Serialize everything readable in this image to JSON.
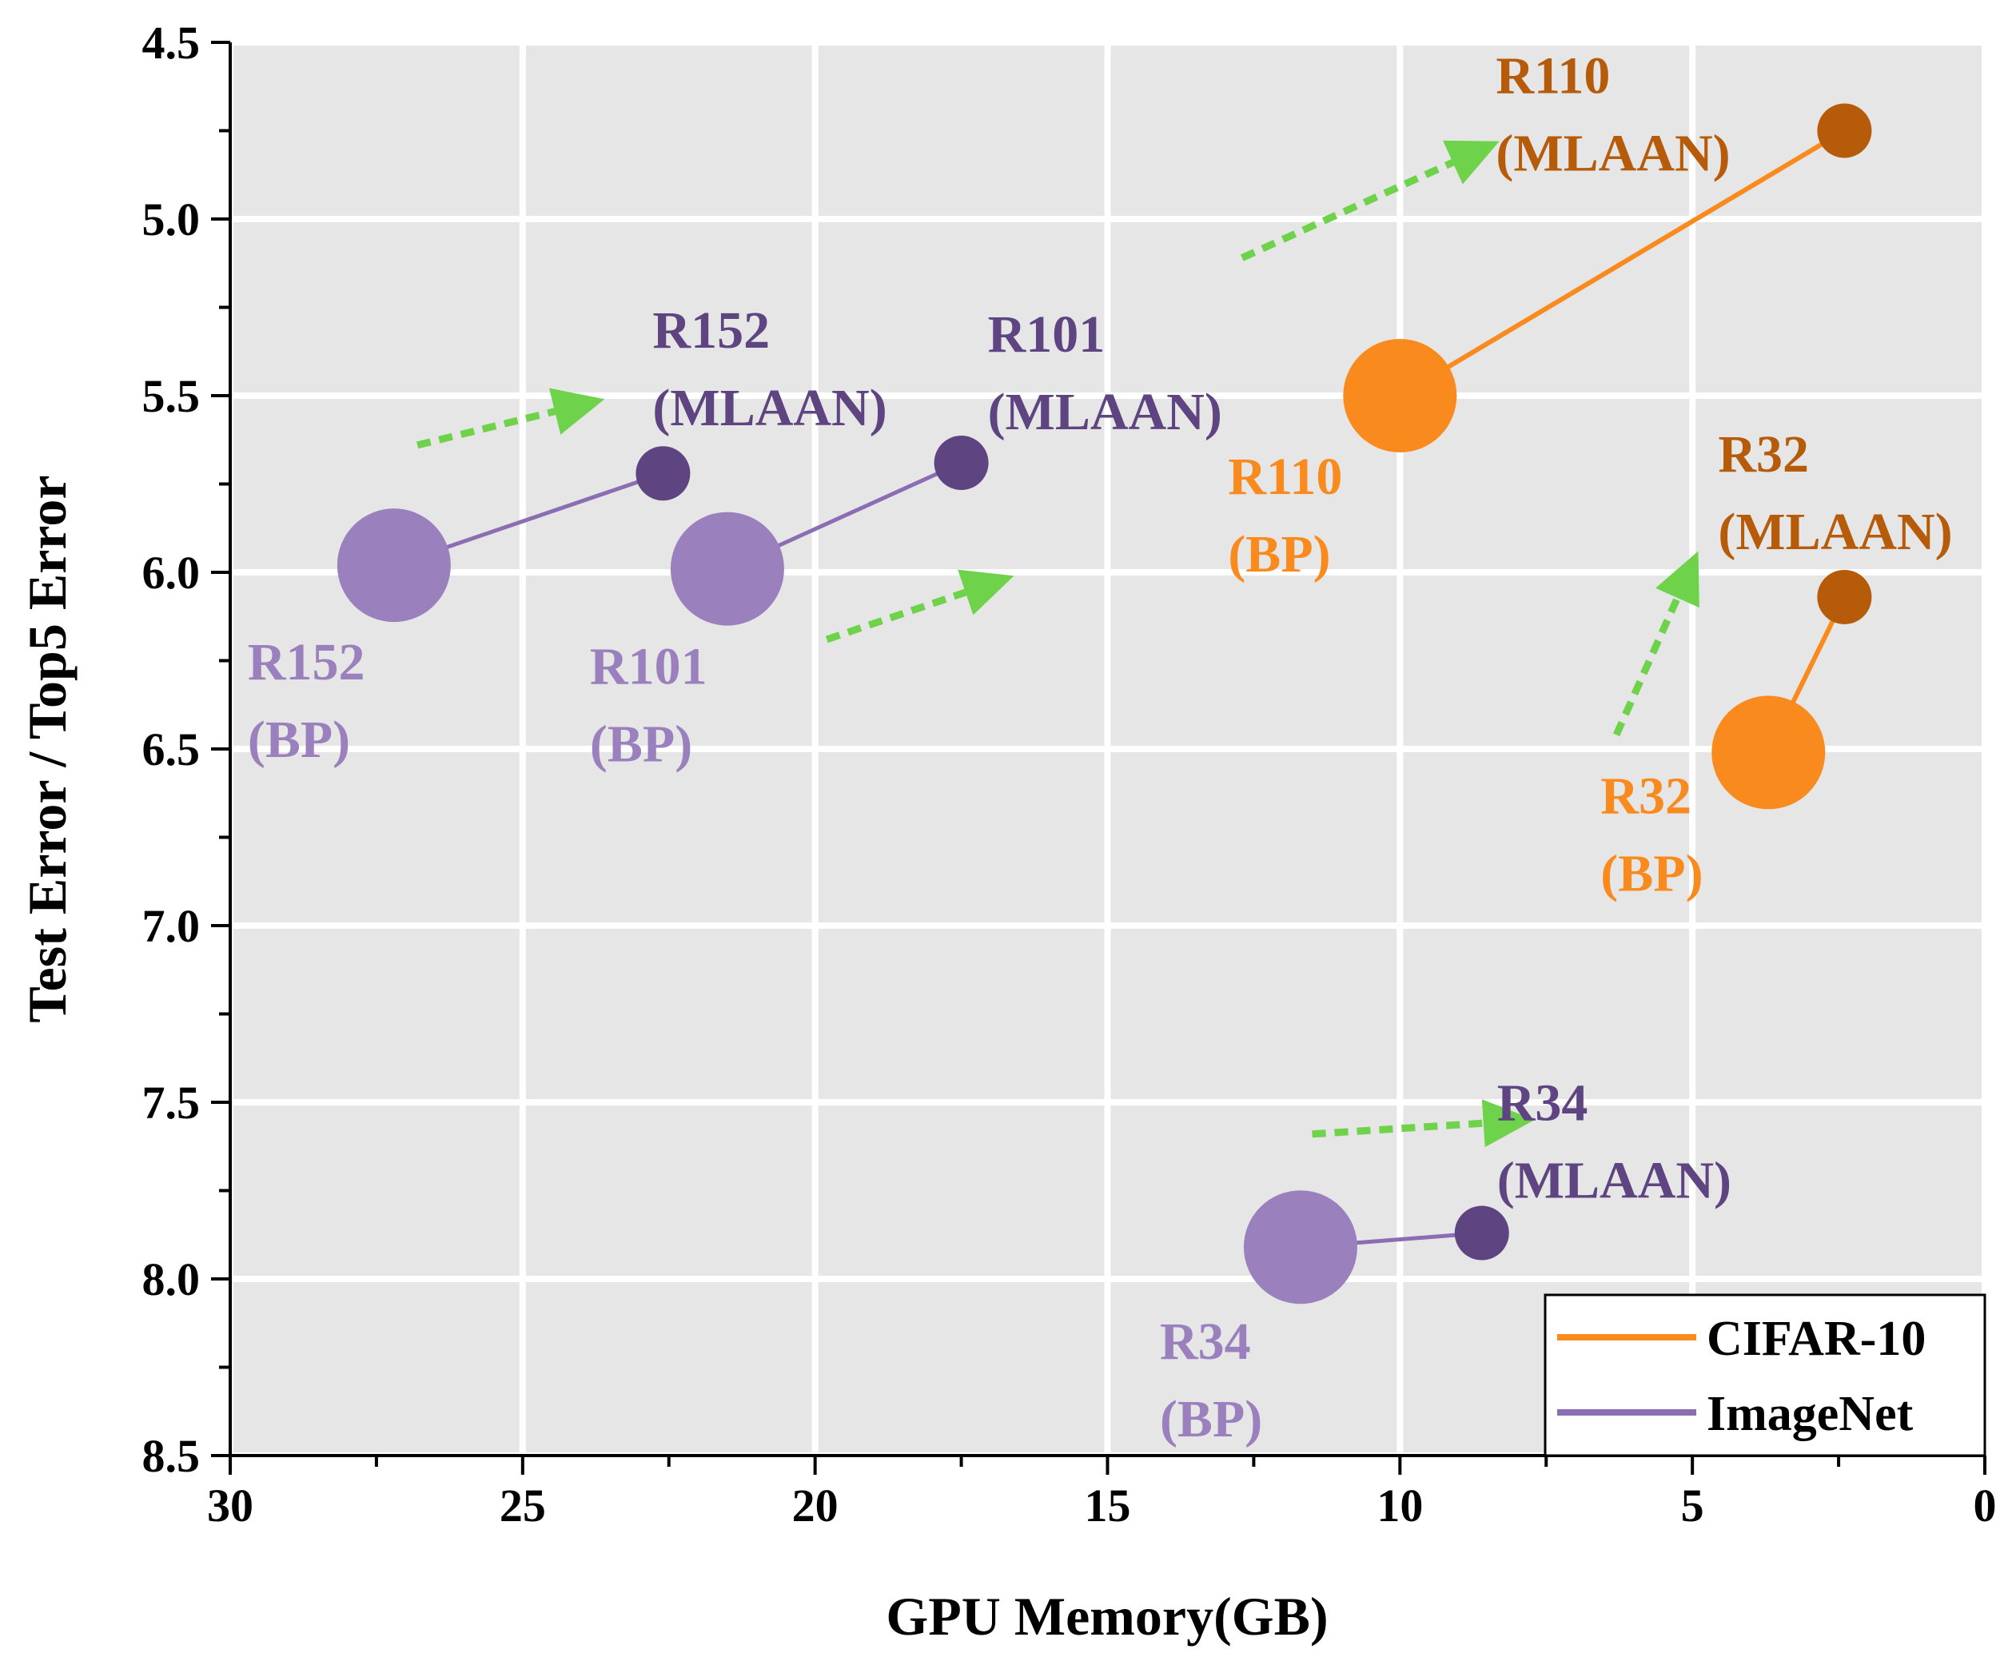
{
  "chart_data": {
    "type": "scatter",
    "xlabel": "GPU Memory(GB)",
    "ylabel": "Test Error / Top5 Error",
    "xlim": [
      30,
      0
    ],
    "ylim": [
      8.5,
      4.5
    ],
    "x_reversed": true,
    "y_reversed": true,
    "x_ticks": [
      "30",
      "25",
      "20",
      "15",
      "10",
      "5",
      "0"
    ],
    "y_ticks": [
      "4.5",
      "5.0",
      "5.5",
      "6.0",
      "6.5",
      "7.0",
      "7.5",
      "8.0",
      "8.5"
    ],
    "grid": true,
    "legend_position": "bottom-right",
    "colors": {
      "cifar_bp": "#f98a1e",
      "cifar_mlaan": "#b55b0a",
      "imagenet_bp": "#9a80bd",
      "imagenet_mlaan": "#5f4482",
      "arrow": "#6ed24a",
      "background": "#e6e6e6"
    },
    "legend": [
      {
        "name": "CIFAR-10",
        "color": "#f98a1e"
      },
      {
        "name": "ImageNet",
        "color": "#8a6db3"
      }
    ],
    "series": [
      {
        "name": "CIFAR-10",
        "pairs": [
          {
            "bp": {
              "x": 10.0,
              "y": 5.5,
              "line1": "R110",
              "line2": "(BP)"
            },
            "mlaan": {
              "x": 2.4,
              "y": 4.75,
              "line1": "R110",
              "line2": "(MLAAN)"
            }
          },
          {
            "bp": {
              "x": 3.7,
              "y": 6.51,
              "line1": "R32",
              "line2": "(BP)"
            },
            "mlaan": {
              "x": 2.4,
              "y": 6.07,
              "line1": "R32",
              "line2": "(MLAAN)"
            }
          }
        ]
      },
      {
        "name": "ImageNet",
        "pairs": [
          {
            "bp": {
              "x": 27.2,
              "y": 5.98,
              "line1": "R152",
              "line2": "(BP)"
            },
            "mlaan": {
              "x": 22.6,
              "y": 5.72,
              "line1": "R152",
              "line2": "(MLAAN)"
            }
          },
          {
            "bp": {
              "x": 21.5,
              "y": 5.99,
              "line1": "R101",
              "line2": "(BP)"
            },
            "mlaan": {
              "x": 17.5,
              "y": 5.69,
              "line1": "R101",
              "line2": "(MLAAN)"
            }
          },
          {
            "bp": {
              "x": 11.7,
              "y": 7.91,
              "line1": "R34",
              "line2": "(BP)"
            },
            "mlaan": {
              "x": 8.6,
              "y": 7.87,
              "line1": "R34",
              "line2": "(MLAAN)"
            }
          }
        ]
      }
    ]
  }
}
